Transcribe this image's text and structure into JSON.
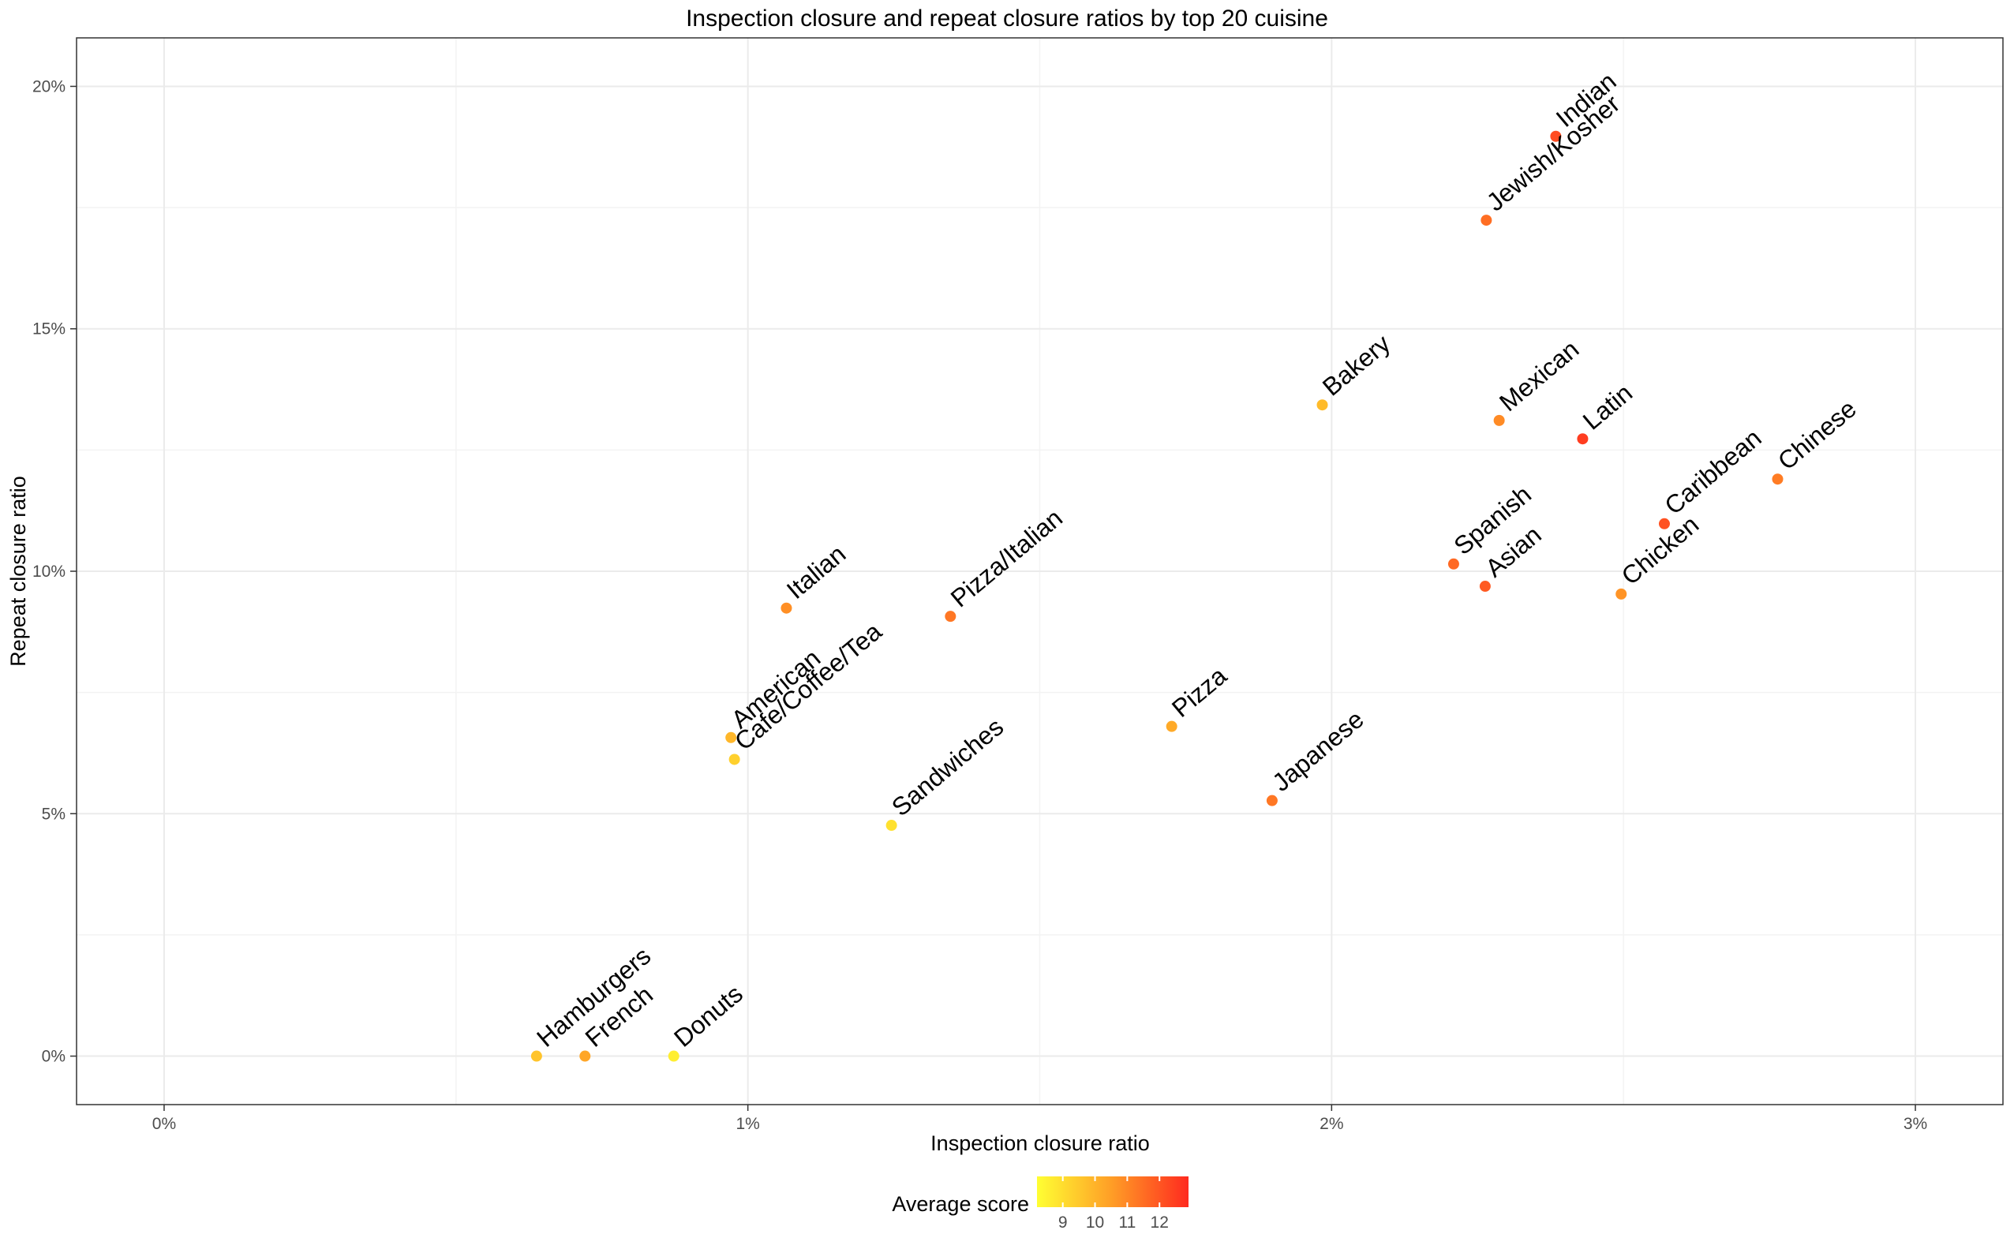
{
  "chart_data": {
    "type": "scatter",
    "title": "Inspection closure and repeat closure ratios by top 20 cuisine",
    "xlabel": "Inspection closure ratio",
    "ylabel": "Repeat closure ratio",
    "xlim": [
      -0.15,
      3.15
    ],
    "ylim": [
      -1,
      21
    ],
    "x_ticks": [
      0,
      1,
      2,
      3
    ],
    "x_tick_labels": [
      "0%",
      "1%",
      "2%",
      "3%"
    ],
    "y_ticks": [
      0,
      5,
      10,
      15,
      20
    ],
    "y_tick_labels": [
      "0%",
      "5%",
      "10%",
      "15%",
      "20%"
    ],
    "grid": true,
    "legend": {
      "title": "Average score",
      "placement": "bottom",
      "ticks": [
        9,
        10,
        11,
        12
      ],
      "tick_labels": [
        "9",
        "10",
        "11",
        "12"
      ],
      "range": [
        8.2,
        12.9
      ],
      "low_color": "#ffff33",
      "high_color": "#ff2a1f"
    },
    "points": [
      {
        "label": "Hamburgers",
        "x": 0.638,
        "y": 0.0,
        "score": 9.6
      },
      {
        "label": "French",
        "x": 0.721,
        "y": 0.0,
        "score": 10.3
      },
      {
        "label": "Donuts",
        "x": 0.873,
        "y": 0.0,
        "score": 8.6
      },
      {
        "label": "Sandwiches",
        "x": 1.246,
        "y": 4.76,
        "score": 8.9
      },
      {
        "label": "Cafe/Coffee/Tea",
        "x": 0.977,
        "y": 6.12,
        "score": 9.3
      },
      {
        "label": "American",
        "x": 0.971,
        "y": 6.57,
        "score": 9.9
      },
      {
        "label": "Italian",
        "x": 1.066,
        "y": 9.24,
        "score": 10.8
      },
      {
        "label": "Pizza/Italian",
        "x": 1.347,
        "y": 9.07,
        "score": 11.3
      },
      {
        "label": "Pizza",
        "x": 1.726,
        "y": 6.8,
        "score": 10.2
      },
      {
        "label": "Japanese",
        "x": 1.898,
        "y": 5.27,
        "score": 11.3
      },
      {
        "label": "Bakery",
        "x": 1.984,
        "y": 13.43,
        "score": 9.8
      },
      {
        "label": "Jewish/Kosher",
        "x": 2.265,
        "y": 17.24,
        "score": 11.5
      },
      {
        "label": "Indian",
        "x": 2.384,
        "y": 18.97,
        "score": 12.2
      },
      {
        "label": "Mexican",
        "x": 2.287,
        "y": 13.11,
        "score": 10.9
      },
      {
        "label": "Latin",
        "x": 2.43,
        "y": 12.73,
        "score": 12.5
      },
      {
        "label": "Spanish",
        "x": 2.209,
        "y": 10.15,
        "score": 11.6
      },
      {
        "label": "Asian",
        "x": 2.263,
        "y": 9.69,
        "score": 11.9
      },
      {
        "label": "Caribbean",
        "x": 2.57,
        "y": 10.98,
        "score": 12.1
      },
      {
        "label": "Chicken",
        "x": 2.496,
        "y": 9.53,
        "score": 10.7
      },
      {
        "label": "Chinese",
        "x": 2.764,
        "y": 11.9,
        "score": 11.2
      }
    ]
  }
}
